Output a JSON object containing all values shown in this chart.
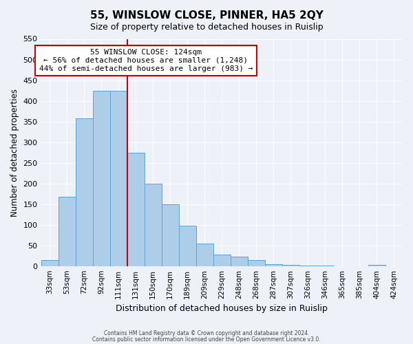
{
  "title": "55, WINSLOW CLOSE, PINNER, HA5 2QY",
  "subtitle": "Size of property relative to detached houses in Ruislip",
  "xlabel": "Distribution of detached houses by size in Ruislip",
  "ylabel": "Number of detached properties",
  "bin_labels": [
    "33sqm",
    "53sqm",
    "72sqm",
    "92sqm",
    "111sqm",
    "131sqm",
    "150sqm",
    "170sqm",
    "189sqm",
    "209sqm",
    "229sqm",
    "248sqm",
    "268sqm",
    "287sqm",
    "307sqm",
    "326sqm",
    "346sqm",
    "365sqm",
    "385sqm",
    "404sqm",
    "424sqm"
  ],
  "bar_heights": [
    15,
    167,
    357,
    425,
    425,
    275,
    200,
    150,
    97,
    55,
    28,
    22,
    15,
    5,
    3,
    1,
    1,
    0,
    0,
    3,
    0
  ],
  "bar_color": "#aecde8",
  "bar_edge_color": "#5ba3d0",
  "vline_x": 5,
  "vline_color": "#cc0000",
  "annotation_title": "55 WINSLOW CLOSE: 124sqm",
  "annotation_line1": "← 56% of detached houses are smaller (1,248)",
  "annotation_line2": "44% of semi-detached houses are larger (983) →",
  "annotation_box_color": "#cc0000",
  "ylim": [
    0,
    550
  ],
  "yticks": [
    0,
    50,
    100,
    150,
    200,
    250,
    300,
    350,
    400,
    450,
    500,
    550
  ],
  "footnote1": "Contains HM Land Registry data © Crown copyright and database right 2024.",
  "footnote2": "Contains public sector information licensed under the Open Government Licence v3.0.",
  "bg_color": "#eef2f8"
}
